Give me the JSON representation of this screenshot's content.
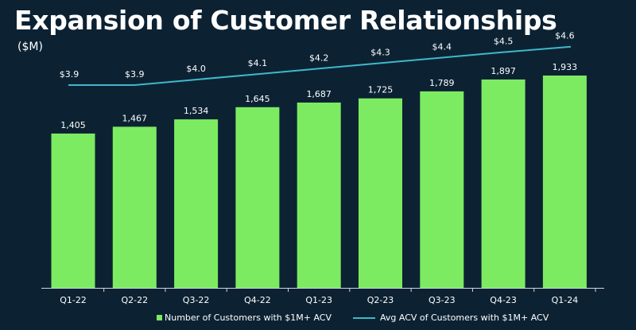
{
  "slide": {
    "title": "Expansion of Customer Relationships",
    "unit_label": "($M)"
  },
  "colors": {
    "background": "#0c2233",
    "bar": "#7ceb62",
    "line": "#3fb8c9",
    "text": "#ffffff",
    "axis": "#cfd6dc"
  },
  "chart_data": {
    "type": "bar",
    "categories": [
      "Q1-22",
      "Q2-22",
      "Q3-22",
      "Q4-22",
      "Q1-23",
      "Q2-23",
      "Q3-23",
      "Q4-23",
      "Q1-24"
    ],
    "series": [
      {
        "name": "Number of Customers with $1M+ ACV",
        "type": "bar",
        "values": [
          1405,
          1467,
          1534,
          1645,
          1687,
          1725,
          1789,
          1897,
          1933
        ],
        "labels": [
          "1,405",
          "1,467",
          "1,534",
          "1,645",
          "1,687",
          "1,725",
          "1,789",
          "1,897",
          "1,933"
        ]
      },
      {
        "name": "Avg ACV of Customers with $1M+ ACV",
        "type": "line",
        "values": [
          3.9,
          3.9,
          4.0,
          4.1,
          4.2,
          4.3,
          4.4,
          4.5,
          4.6
        ],
        "labels": [
          "$3.9",
          "$3.9",
          "$4.0",
          "$4.1",
          "$4.2",
          "$4.3",
          "$4.4",
          "$4.5",
          "$4.6"
        ]
      }
    ],
    "ylabel": "($M)",
    "grid": false,
    "legend_position": "bottom"
  }
}
